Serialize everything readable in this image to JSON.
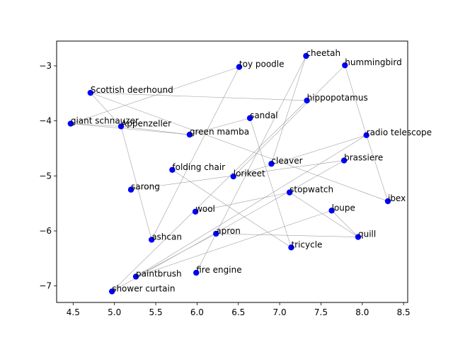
{
  "chart_data": {
    "type": "scatter",
    "title": "",
    "xlabel": "",
    "ylabel": "",
    "xlim": [
      4.3,
      8.55
    ],
    "ylim": [
      -7.3,
      -2.55
    ],
    "x_ticks": [
      4.5,
      5.0,
      5.5,
      6.0,
      6.5,
      7.0,
      7.5,
      8.0,
      8.5
    ],
    "y_ticks": [
      -7,
      -6,
      -5,
      -4,
      -3
    ],
    "x_tick_labels": [
      "4.5",
      "5.0",
      "5.5",
      "6.0",
      "6.5",
      "7.0",
      "7.5",
      "8.0",
      "8.5"
    ],
    "y_tick_labels": [
      "−7",
      "−6",
      "−5",
      "−4",
      "−3"
    ],
    "grid": false,
    "marker_color": "#0000ff",
    "edge_color": "#a0a0a0",
    "points": [
      {
        "label": "cheetah",
        "x": 7.32,
        "y": -2.82
      },
      {
        "label": "hummingbird",
        "x": 7.79,
        "y": -2.99
      },
      {
        "label": "toy poodle",
        "x": 6.51,
        "y": -3.02
      },
      {
        "label": "Scottish deerhound",
        "x": 4.71,
        "y": -3.49
      },
      {
        "label": "hippopotamus",
        "x": 7.33,
        "y": -3.63
      },
      {
        "label": "sandal",
        "x": 6.64,
        "y": -3.95
      },
      {
        "label": "giant schnauzer",
        "x": 4.47,
        "y": -4.05
      },
      {
        "label": "Appenzeller",
        "x": 5.08,
        "y": -4.1
      },
      {
        "label": "green mamba",
        "x": 5.91,
        "y": -4.25
      },
      {
        "label": "radio telescope",
        "x": 8.05,
        "y": -4.26
      },
      {
        "label": "brassiere",
        "x": 7.78,
        "y": -4.72
      },
      {
        "label": "cleaver",
        "x": 6.9,
        "y": -4.78
      },
      {
        "label": "folding chair",
        "x": 5.7,
        "y": -4.89
      },
      {
        "label": "lorikeet",
        "x": 6.44,
        "y": -5.01
      },
      {
        "label": "sarong",
        "x": 5.2,
        "y": -5.25
      },
      {
        "label": "stopwatch",
        "x": 7.12,
        "y": -5.3
      },
      {
        "label": "ibex",
        "x": 8.31,
        "y": -5.46
      },
      {
        "label": "loupe",
        "x": 7.63,
        "y": -5.63
      },
      {
        "label": "wool",
        "x": 5.98,
        "y": -5.65
      },
      {
        "label": "apron",
        "x": 6.23,
        "y": -6.05
      },
      {
        "label": "quill",
        "x": 7.95,
        "y": -6.11
      },
      {
        "label": "ashcan",
        "x": 5.45,
        "y": -6.16
      },
      {
        "label": "tricycle",
        "x": 7.14,
        "y": -6.3
      },
      {
        "label": "fire engine",
        "x": 5.99,
        "y": -6.76
      },
      {
        "label": "paintbrush",
        "x": 5.26,
        "y": -6.83
      },
      {
        "label": "shower curtain",
        "x": 4.97,
        "y": -7.1
      }
    ],
    "edges": [
      [
        "cheetah",
        "cleaver"
      ],
      [
        "cheetah",
        "fire engine"
      ],
      [
        "hummingbird",
        "radio telescope"
      ],
      [
        "hummingbird",
        "lorikeet"
      ],
      [
        "radio telescope",
        "ibex"
      ],
      [
        "radio telescope",
        "lorikeet"
      ],
      [
        "radio telescope",
        "paintbrush"
      ],
      [
        "toy poodle",
        "giant schnauzer"
      ],
      [
        "toy poodle",
        "ashcan"
      ],
      [
        "Scottish deerhound",
        "hippopotamus"
      ],
      [
        "Scottish deerhound",
        "Appenzeller"
      ],
      [
        "Scottish deerhound",
        "ibex"
      ],
      [
        "hippopotamus",
        "shower curtain"
      ],
      [
        "giant schnauzer",
        "Appenzeller"
      ],
      [
        "giant schnauzer",
        "green mamba"
      ],
      [
        "Appenzeller",
        "green mamba"
      ],
      [
        "Appenzeller",
        "ashcan"
      ],
      [
        "sandal",
        "green mamba"
      ],
      [
        "sandal",
        "tricycle"
      ],
      [
        "brassiere",
        "sarong"
      ],
      [
        "brassiere",
        "shower curtain"
      ],
      [
        "folding chair",
        "tricycle"
      ],
      [
        "stopwatch",
        "wool"
      ],
      [
        "stopwatch",
        "quill"
      ],
      [
        "apron",
        "quill"
      ],
      [
        "apron",
        "paintbrush"
      ],
      [
        "loupe",
        "paintbrush"
      ],
      [
        "loupe",
        "quill"
      ]
    ]
  }
}
